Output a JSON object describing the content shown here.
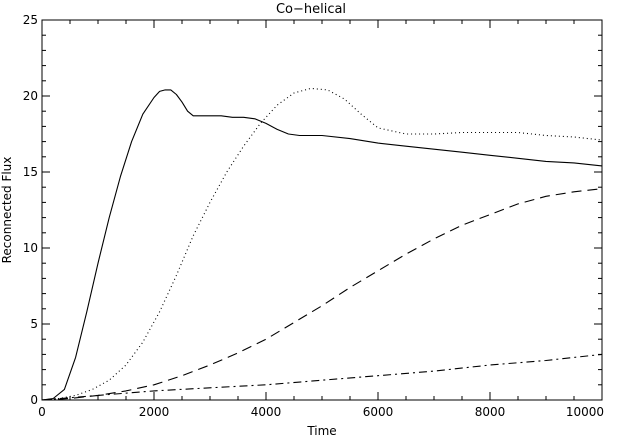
{
  "chart_data": {
    "type": "line",
    "title": "Co−helical",
    "xlabel": "Time",
    "ylabel": "Reconnected Flux",
    "xlim": [
      0,
      10000
    ],
    "ylim": [
      0,
      25
    ],
    "xticks": [
      0,
      2000,
      4000,
      6000,
      8000,
      10000
    ],
    "yticks": [
      0,
      5,
      10,
      15,
      20,
      25
    ],
    "grid": false,
    "legend": "none",
    "series": [
      {
        "line_style": "solid",
        "color": "#000000",
        "x": [
          0,
          200,
          400,
          600,
          800,
          1000,
          1200,
          1400,
          1600,
          1800,
          2000,
          2100,
          2200,
          2300,
          2400,
          2500,
          2600,
          2700,
          2800,
          3000,
          3200,
          3400,
          3600,
          3800,
          4000,
          4200,
          4400,
          4600,
          5000,
          5500,
          6000,
          6500,
          7000,
          7500,
          8000,
          8500,
          9000,
          9500,
          10000
        ],
        "y": [
          0.0,
          0.1,
          0.7,
          2.8,
          5.8,
          9.0,
          12.0,
          14.7,
          17.0,
          18.8,
          19.9,
          20.3,
          20.4,
          20.4,
          20.1,
          19.6,
          19.0,
          18.7,
          18.7,
          18.7,
          18.7,
          18.6,
          18.6,
          18.5,
          18.2,
          17.8,
          17.5,
          17.4,
          17.4,
          17.2,
          16.9,
          16.7,
          16.5,
          16.3,
          16.1,
          15.9,
          15.7,
          15.6,
          15.4
        ]
      },
      {
        "line_style": "dotted",
        "color": "#000000",
        "x": [
          0,
          300,
          600,
          900,
          1200,
          1500,
          1800,
          2100,
          2400,
          2700,
          3000,
          3300,
          3600,
          3900,
          4200,
          4500,
          4800,
          5100,
          5400,
          5700,
          6000,
          6500,
          7000,
          7500,
          8000,
          8500,
          9000,
          9500,
          10000
        ],
        "y": [
          0.0,
          0.1,
          0.3,
          0.7,
          1.3,
          2.3,
          3.8,
          5.8,
          8.2,
          10.8,
          13.0,
          15.0,
          16.7,
          18.2,
          19.4,
          20.2,
          20.5,
          20.4,
          19.8,
          18.8,
          17.9,
          17.5,
          17.5,
          17.6,
          17.6,
          17.6,
          17.4,
          17.3,
          17.1
        ]
      },
      {
        "line_style": "dashed",
        "color": "#000000",
        "x": [
          0,
          500,
          1000,
          1500,
          2000,
          2500,
          3000,
          3500,
          4000,
          4500,
          5000,
          5500,
          6000,
          6500,
          7000,
          7500,
          8000,
          8500,
          9000,
          9500,
          10000
        ],
        "y": [
          0.0,
          0.1,
          0.3,
          0.6,
          1.0,
          1.6,
          2.3,
          3.1,
          4.0,
          5.1,
          6.2,
          7.4,
          8.5,
          9.6,
          10.6,
          11.5,
          12.2,
          12.9,
          13.4,
          13.7,
          13.9
        ]
      },
      {
        "line_style": "dash-dot",
        "color": "#000000",
        "x": [
          0,
          1000,
          2000,
          3000,
          4000,
          5000,
          6000,
          7000,
          8000,
          9000,
          9500,
          10000
        ],
        "y": [
          0.0,
          0.3,
          0.6,
          0.8,
          1.0,
          1.3,
          1.6,
          1.9,
          2.3,
          2.6,
          2.8,
          3.0
        ]
      }
    ]
  }
}
